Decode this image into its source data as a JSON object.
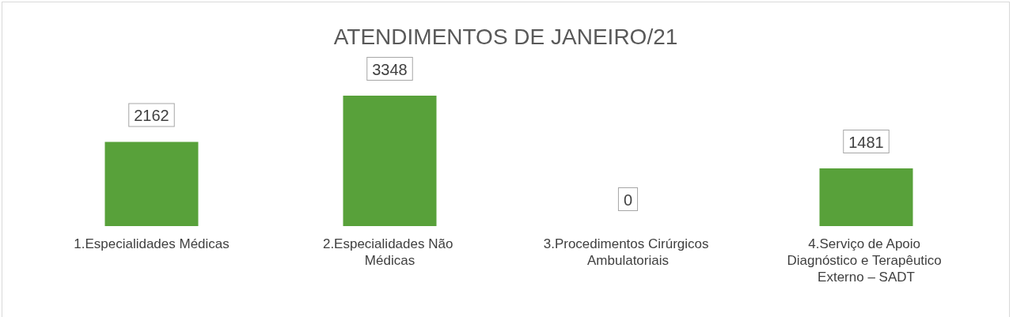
{
  "chart_data": {
    "type": "bar",
    "title": "ATENDIMENTOS DE JANEIRO/21",
    "categories": [
      "1.Especialidades Médicas",
      "2.Especialidades Não Médicas",
      "3.Procedimentos Cirúrgicos Ambulatoriais",
      "4.Serviço de Apoio Diagnóstico e Terapêutico Externo – SADT"
    ],
    "values": [
      2162,
      3348,
      0,
      1481
    ],
    "color": "#58a13a",
    "data_labels": true
  }
}
